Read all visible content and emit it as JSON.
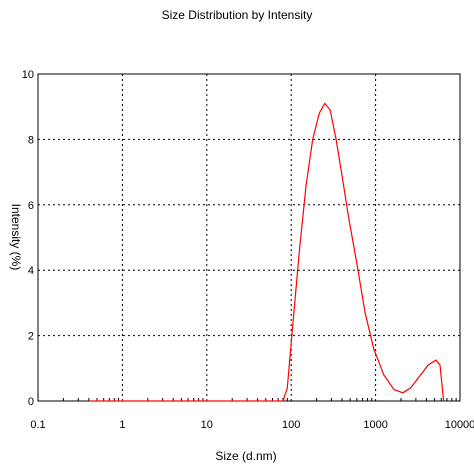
{
  "chart_data": {
    "type": "line",
    "title": "Size Distribution by Intensity",
    "xlabel": "Size (d.nm)",
    "ylabel": "Intensity (%)",
    "x_scale": "log",
    "xlim": [
      0.1,
      10000
    ],
    "ylim": [
      0,
      10
    ],
    "x_ticks": [
      0.1,
      1,
      10,
      100,
      1000,
      10000
    ],
    "x_tick_labels": [
      "0.1",
      "1",
      "10",
      "100",
      "1000",
      "10000"
    ],
    "y_ticks": [
      0,
      2,
      4,
      6,
      8,
      10
    ],
    "y_tick_labels": [
      "0",
      "2",
      "4",
      "6",
      "8",
      "10"
    ],
    "grid": true,
    "series": [
      {
        "color": "#ff0000",
        "points": [
          [
            0.4,
            0
          ],
          [
            1,
            0
          ],
          [
            10,
            0
          ],
          [
            30,
            0
          ],
          [
            60,
            0
          ],
          [
            80,
            0
          ],
          [
            90,
            0.4
          ],
          [
            105,
            2.4
          ],
          [
            125,
            4.6
          ],
          [
            150,
            6.6
          ],
          [
            180,
            8.0
          ],
          [
            215,
            8.8
          ],
          [
            250,
            9.1
          ],
          [
            290,
            8.9
          ],
          [
            340,
            8.0
          ],
          [
            400,
            6.9
          ],
          [
            480,
            5.6
          ],
          [
            600,
            4.2
          ],
          [
            750,
            2.7
          ],
          [
            950,
            1.6
          ],
          [
            1250,
            0.8
          ],
          [
            1650,
            0.35
          ],
          [
            2100,
            0.25
          ],
          [
            2600,
            0.4
          ],
          [
            3300,
            0.75
          ],
          [
            4200,
            1.1
          ],
          [
            5200,
            1.25
          ],
          [
            5800,
            1.1
          ],
          [
            6400,
            0
          ]
        ]
      }
    ]
  }
}
